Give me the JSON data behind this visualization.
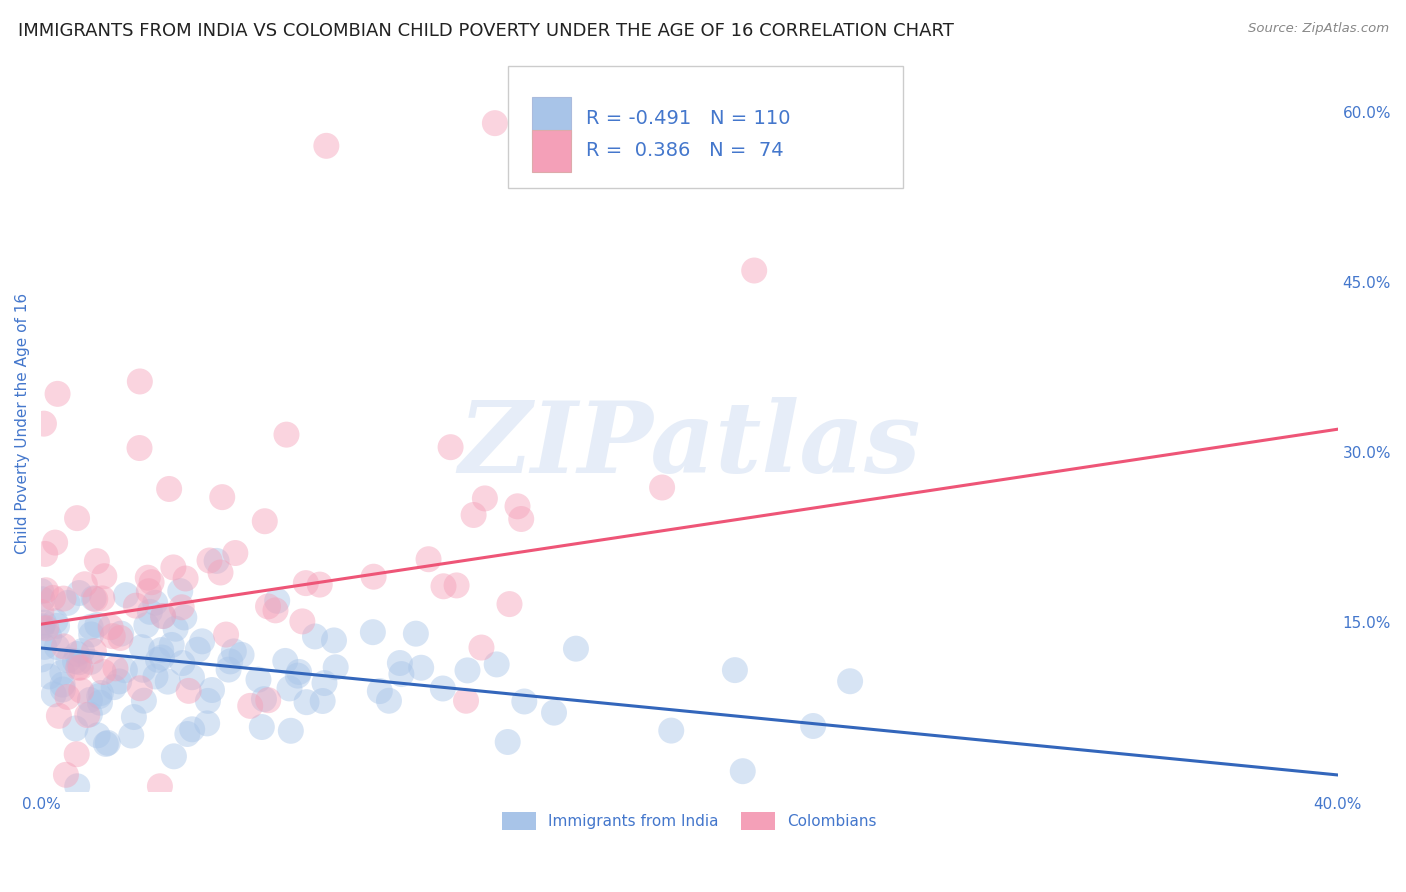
{
  "title": "IMMIGRANTS FROM INDIA VS COLOMBIAN CHILD POVERTY UNDER THE AGE OF 16 CORRELATION CHART",
  "source": "Source: ZipAtlas.com",
  "ylabel": "Child Poverty Under the Age of 16",
  "xlim": [
    0.0,
    0.4
  ],
  "ylim": [
    0.0,
    0.65
  ],
  "yticks": [
    0.0,
    0.15,
    0.3,
    0.45,
    0.6
  ],
  "ytick_labels": [
    "",
    "15.0%",
    "30.0%",
    "45.0%",
    "60.0%"
  ],
  "xticks": [
    0.0,
    0.1,
    0.2,
    0.3,
    0.4
  ],
  "xtick_labels": [
    "0.0%",
    "",
    "",
    "",
    "40.0%"
  ],
  "background_color": "#ffffff",
  "title_color": "#222222",
  "axis_label_color": "#4477cc",
  "legend_label1": "Immigrants from India",
  "legend_label2": "Colombians",
  "series1_color": "#a8c4e8",
  "series1_line_color": "#3366bb",
  "series2_color": "#f4a0b8",
  "series2_line_color": "#ee5577",
  "R1": -0.491,
  "N1": 110,
  "R2": 0.386,
  "N2": 74,
  "line1_x0": 0.0,
  "line1_y0": 0.127,
  "line1_x1": 0.4,
  "line1_y1": 0.015,
  "line2_x0": 0.0,
  "line2_y0": 0.148,
  "line2_x1": 0.4,
  "line2_y1": 0.32,
  "watermark_text": "ZIPatlas",
  "title_fontsize": 13,
  "label_fontsize": 11,
  "tick_fontsize": 11,
  "legend_fontsize": 14
}
